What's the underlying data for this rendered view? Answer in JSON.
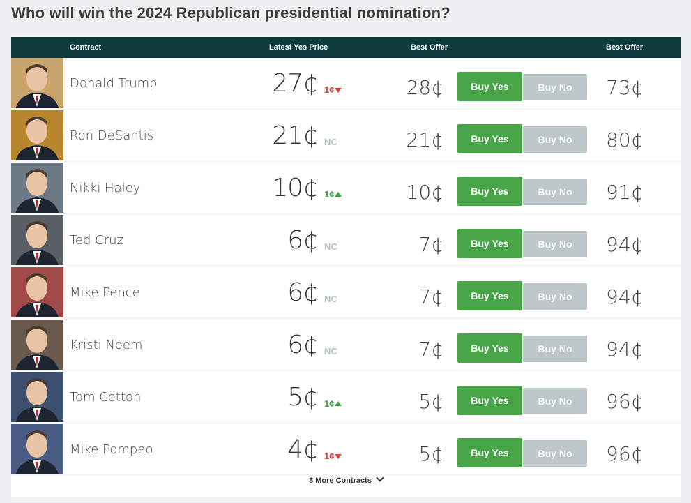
{
  "page_title": "Who will win the 2024 Republican presidential nomination?",
  "header": {
    "contract": "Contract",
    "latest_yes_price": "Latest Yes Price",
    "best_offer_yes": "Best Offer",
    "best_offer_no": "Best Offer"
  },
  "buttons": {
    "buy_yes": "Buy Yes",
    "buy_no": "Buy No"
  },
  "rows": [
    {
      "name": "Donald Trump",
      "price": "27¢",
      "change": "1¢",
      "direction": "down",
      "best_yes": "28¢",
      "best_no": "73¢",
      "photo_bg": "#c9a46a"
    },
    {
      "name": "Ron DeSantis",
      "price": "21¢",
      "change": "NC",
      "direction": "nc",
      "best_yes": "21¢",
      "best_no": "80¢",
      "photo_bg": "#b8862c"
    },
    {
      "name": "Nikki Haley",
      "price": "10¢",
      "change": "1¢",
      "direction": "up",
      "best_yes": "10¢",
      "best_no": "91¢",
      "photo_bg": "#6d7a86"
    },
    {
      "name": "Ted Cruz",
      "price": "6¢",
      "change": "NC",
      "direction": "nc",
      "best_yes": "7¢",
      "best_no": "94¢",
      "photo_bg": "#5a5f66"
    },
    {
      "name": "Mike Pence",
      "price": "6¢",
      "change": "NC",
      "direction": "nc",
      "best_yes": "7¢",
      "best_no": "94¢",
      "photo_bg": "#a24a4a"
    },
    {
      "name": "Kristi Noem",
      "price": "6¢",
      "change": "NC",
      "direction": "nc",
      "best_yes": "7¢",
      "best_no": "94¢",
      "photo_bg": "#6b5a4e"
    },
    {
      "name": "Tom Cotton",
      "price": "5¢",
      "change": "1¢",
      "direction": "up",
      "best_yes": "5¢",
      "best_no": "96¢",
      "photo_bg": "#3d4f6e"
    },
    {
      "name": "Mike Pompeo",
      "price": "4¢",
      "change": "1¢",
      "direction": "down",
      "best_yes": "5¢",
      "best_no": "96¢",
      "photo_bg": "#4a5c84"
    }
  ],
  "more_contracts": "8 More Contracts",
  "colors": {
    "header_bg": "#0e3b3e",
    "buy_yes": "#47a548",
    "buy_no": "#bdc6c8",
    "down": "#d9423a",
    "up": "#3ba040",
    "nc": "#b8c2c4"
  }
}
